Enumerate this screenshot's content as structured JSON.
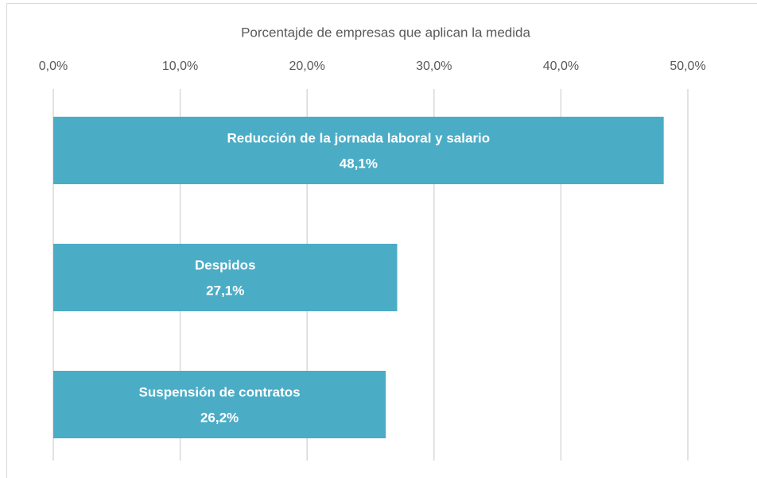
{
  "chart_data": {
    "type": "bar",
    "orientation": "horizontal",
    "title": "Porcentajde de empresas que aplican la medida",
    "categories": [
      "Reducción de la jornada laboral y salario",
      "Despidos",
      "Suspensión de contratos"
    ],
    "values": [
      48.1,
      27.1,
      26.2
    ],
    "value_labels": [
      "48,1%",
      "27,1%",
      "26,2%"
    ],
    "color": "#4bacc6",
    "xlim": [
      0,
      50
    ],
    "xticks": [
      {
        "value": 0,
        "label": "0,0%"
      },
      {
        "value": 10,
        "label": "10,0%"
      },
      {
        "value": 20,
        "label": "20,0%"
      },
      {
        "value": 30,
        "label": "30,0%"
      },
      {
        "value": 40,
        "label": "40,0%"
      },
      {
        "value": 50,
        "label": "50,0%"
      }
    ],
    "grid": true
  }
}
